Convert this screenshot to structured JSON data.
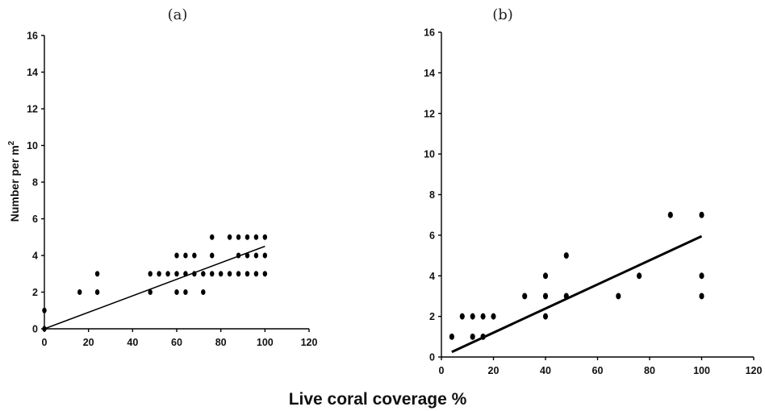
{
  "figure": {
    "shared_xlabel": "Live coral coverage %",
    "ylabel_text": "Number per m",
    "ylabel_sup": "2"
  },
  "chart_data": [
    {
      "type": "scatter",
      "title": "(a)",
      "xlabel": "Live coral coverage %",
      "ylabel": "Number per m2",
      "xlim": [
        0,
        120
      ],
      "ylim": [
        0,
        16
      ],
      "xticks": [
        "0",
        "20",
        "40",
        "60",
        "80",
        "100",
        "120"
      ],
      "yticks": [
        "0",
        "2",
        "4",
        "6",
        "8",
        "10",
        "12",
        "14",
        "16"
      ],
      "grid": false,
      "legend": "none",
      "series": [
        {
          "points": [
            [
              0,
              0
            ],
            [
              0,
              1
            ],
            [
              16,
              2
            ],
            [
              24,
              2
            ],
            [
              24,
              3
            ],
            [
              48,
              2
            ],
            [
              48,
              3
            ],
            [
              52,
              3
            ],
            [
              56,
              3
            ],
            [
              60,
              2
            ],
            [
              60,
              3
            ],
            [
              60,
              4
            ],
            [
              64,
              2
            ],
            [
              64,
              3
            ],
            [
              64,
              4
            ],
            [
              68,
              3
            ],
            [
              68,
              4
            ],
            [
              72,
              2
            ],
            [
              72,
              3
            ],
            [
              76,
              3
            ],
            [
              76,
              4
            ],
            [
              76,
              5
            ],
            [
              80,
              3
            ],
            [
              84,
              3
            ],
            [
              84,
              5
            ],
            [
              88,
              3
            ],
            [
              88,
              4
            ],
            [
              88,
              5
            ],
            [
              92,
              3
            ],
            [
              92,
              4
            ],
            [
              92,
              5
            ],
            [
              96,
              3
            ],
            [
              96,
              4
            ],
            [
              96,
              5
            ],
            [
              100,
              3
            ],
            [
              100,
              4
            ],
            [
              100,
              5
            ]
          ]
        }
      ],
      "trendline": {
        "from": [
          0,
          0
        ],
        "to": [
          100,
          4.5
        ]
      }
    },
    {
      "type": "scatter",
      "title": "(b)",
      "xlabel": "Live coral coverage %",
      "ylabel": "",
      "xlim": [
        0,
        120
      ],
      "ylim": [
        0,
        16
      ],
      "xticks": [
        "0",
        "20",
        "40",
        "60",
        "80",
        "100",
        "120"
      ],
      "yticks": [
        "0",
        "2",
        "4",
        "6",
        "8",
        "10",
        "12",
        "14",
        "16"
      ],
      "grid": false,
      "legend": "none",
      "series": [
        {
          "points": [
            [
              4,
              1
            ],
            [
              8,
              2
            ],
            [
              12,
              1
            ],
            [
              12,
              2
            ],
            [
              16,
              1
            ],
            [
              16,
              2
            ],
            [
              20,
              2
            ],
            [
              32,
              3
            ],
            [
              40,
              2
            ],
            [
              40,
              3
            ],
            [
              40,
              4
            ],
            [
              48,
              3
            ],
            [
              48,
              5
            ],
            [
              68,
              3
            ],
            [
              76,
              4
            ],
            [
              88,
              7
            ],
            [
              100,
              3
            ],
            [
              100,
              4
            ],
            [
              100,
              7
            ]
          ]
        }
      ],
      "trendline": {
        "from": [
          4,
          0.25
        ],
        "to": [
          100,
          5.95
        ]
      }
    }
  ]
}
